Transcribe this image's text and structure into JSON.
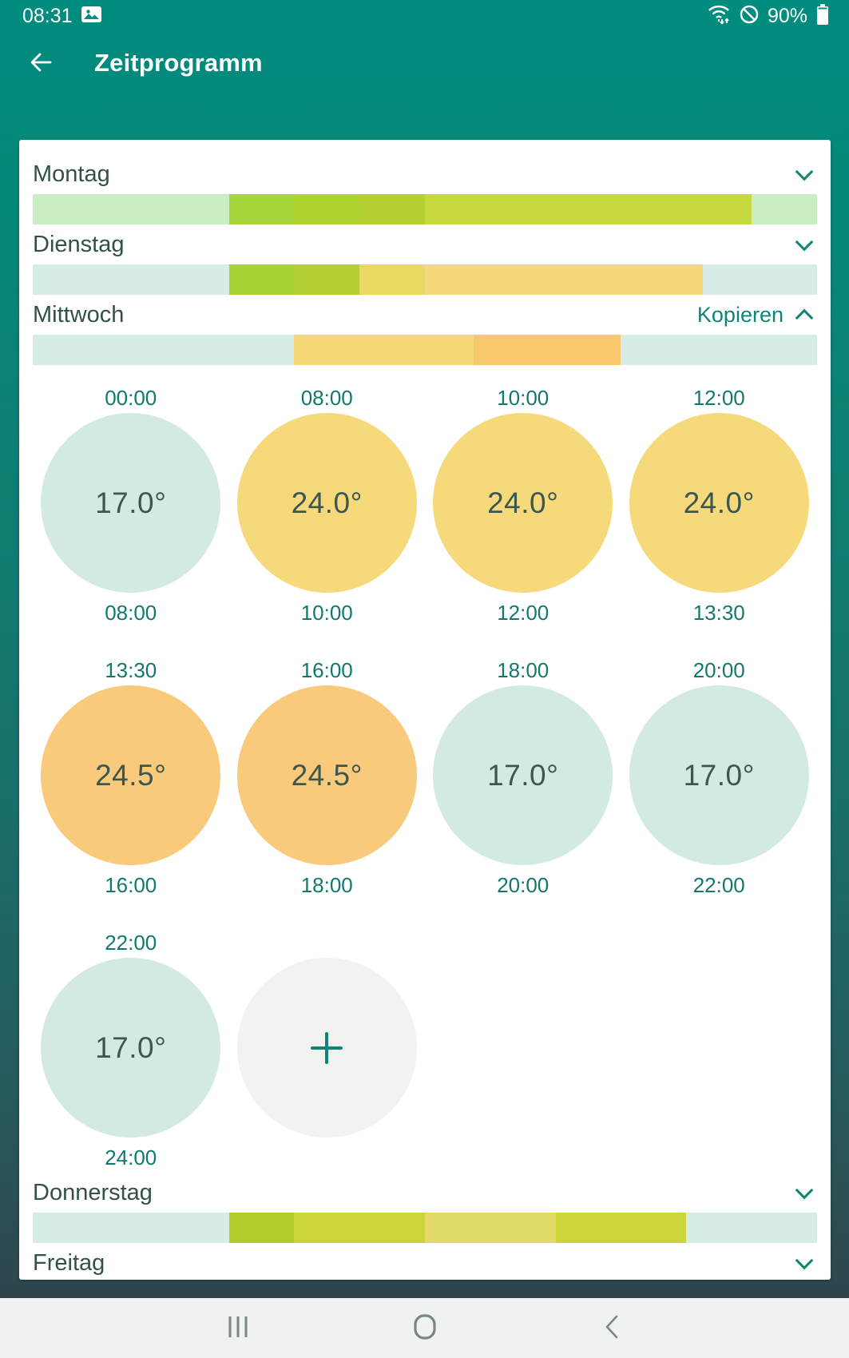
{
  "status_bar": {
    "time": "08:31",
    "battery_percent": "90%",
    "icons": [
      "image-notification-icon",
      "wifi-icon",
      "blocked-icon",
      "battery-icon"
    ]
  },
  "header": {
    "title": "Zeitprogramm"
  },
  "nav_bar": {
    "icons": [
      "recents-icon",
      "home-icon",
      "back-icon"
    ]
  },
  "colors": {
    "app_teal": "#008C7E",
    "bg_gradient_bottom": "#2E454C",
    "card_bg": "#FFFFFF",
    "day_label": "#33504B",
    "accent_link": "#0E8577",
    "time_label": "#11796C",
    "temp_text": "#3C5651",
    "circle_cool": "#D3EAE4",
    "circle_warm": "#F6D97B",
    "circle_hot": "#F9CA7C",
    "circle_add": "#F2F2F2",
    "nav_bg": "#F0F1F1",
    "nav_icon": "#7B8787"
  },
  "days": [
    {
      "name": "Montag",
      "chevron": "down",
      "segments": [
        {
          "from_h": 0,
          "to_h": 6,
          "color": "#CBEDC4"
        },
        {
          "from_h": 6,
          "to_h": 8,
          "color": "#A5D73D"
        },
        {
          "from_h": 8,
          "to_h": 10,
          "color": "#ACD32F"
        },
        {
          "from_h": 10,
          "to_h": 12,
          "color": "#B6D034"
        },
        {
          "from_h": 12,
          "to_h": 22,
          "color": "#C7D83F"
        },
        {
          "from_h": 22,
          "to_h": 24,
          "color": "#CBEDC4"
        }
      ]
    },
    {
      "name": "Dienstag",
      "chevron": "down",
      "segments": [
        {
          "from_h": 0,
          "to_h": 6,
          "color": "#D7ECE7"
        },
        {
          "from_h": 6,
          "to_h": 8,
          "color": "#A7D434"
        },
        {
          "from_h": 8,
          "to_h": 10,
          "color": "#B3D134"
        },
        {
          "from_h": 10,
          "to_h": 12,
          "color": "#EBD964"
        },
        {
          "from_h": 12,
          "to_h": 20.5,
          "color": "#F5D87C"
        },
        {
          "from_h": 20.5,
          "to_h": 24,
          "color": "#D7ECE7"
        }
      ]
    },
    {
      "name": "Mittwoch",
      "chevron": "up",
      "copy_label": "Kopieren",
      "segments": [
        {
          "from_h": 0,
          "to_h": 8,
          "color": "#D7ECE7"
        },
        {
          "from_h": 8,
          "to_h": 13.5,
          "color": "#F7D876"
        },
        {
          "from_h": 13.5,
          "to_h": 18,
          "color": "#F9C76D"
        },
        {
          "from_h": 18,
          "to_h": 24,
          "color": "#D7ECE7"
        }
      ],
      "slots": [
        {
          "start": "00:00",
          "end": "08:00",
          "temp": "17.0°",
          "kind": "cool"
        },
        {
          "start": "08:00",
          "end": "10:00",
          "temp": "24.0°",
          "kind": "warm"
        },
        {
          "start": "10:00",
          "end": "12:00",
          "temp": "24.0°",
          "kind": "warm"
        },
        {
          "start": "12:00",
          "end": "13:30",
          "temp": "24.0°",
          "kind": "warm"
        },
        {
          "start": "13:30",
          "end": "16:00",
          "temp": "24.5°",
          "kind": "hot"
        },
        {
          "start": "16:00",
          "end": "18:00",
          "temp": "24.5°",
          "kind": "hot"
        },
        {
          "start": "18:00",
          "end": "20:00",
          "temp": "17.0°",
          "kind": "cool"
        },
        {
          "start": "20:00",
          "end": "22:00",
          "temp": "17.0°",
          "kind": "cool"
        },
        {
          "start": "22:00",
          "end": "24:00",
          "temp": "17.0°",
          "kind": "cool"
        },
        {
          "kind": "add"
        }
      ]
    },
    {
      "name": "Donnerstag",
      "chevron": "down",
      "segments": [
        {
          "from_h": 0,
          "to_h": 6,
          "color": "#D7ECE7"
        },
        {
          "from_h": 6,
          "to_h": 8,
          "color": "#B2CC2D"
        },
        {
          "from_h": 8,
          "to_h": 12,
          "color": "#CBD539"
        },
        {
          "from_h": 12,
          "to_h": 16,
          "color": "#E2DA67"
        },
        {
          "from_h": 16,
          "to_h": 20,
          "color": "#CBD53A"
        },
        {
          "from_h": 20,
          "to_h": 24,
          "color": "#D7ECE7"
        }
      ]
    },
    {
      "name": "Freitag",
      "chevron": "down",
      "segments": []
    }
  ]
}
